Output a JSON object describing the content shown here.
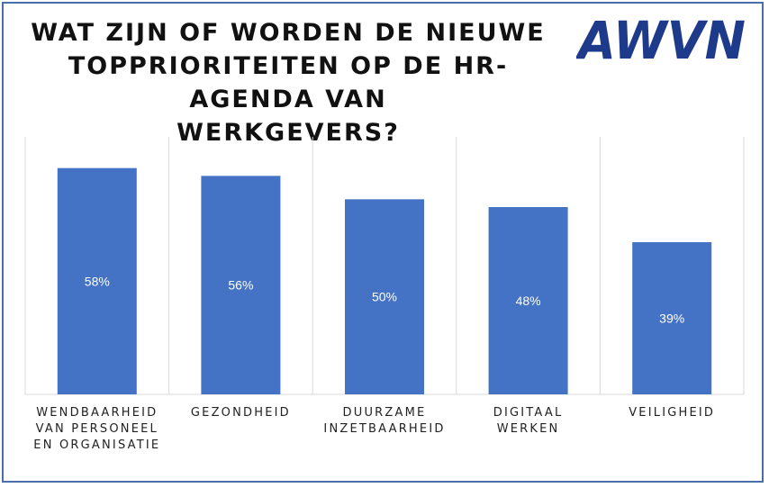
{
  "title": "WAT ZIJN OF WORDEN DE NIEUWE\nTOPPRIORITEITEN OP DE HR-AGENDA VAN\nWERKGEVERS?",
  "logo": {
    "text": "AWVN",
    "color": "#1e3a8a"
  },
  "colors": {
    "bar": "#4472c4",
    "frame": "#4a6ea9",
    "grid": "#d9d9d9",
    "data_label": "#ffffff"
  },
  "chart_data": {
    "type": "bar",
    "categories": [
      "WENDBAARHEID VAN PERSONEEL EN ORGANISATIE",
      "GEZONDHEID",
      "DUURZAME INZETBAARHEID",
      "DIGITAAL WERKEN",
      "VEILIGHEID"
    ],
    "values": [
      58,
      56,
      50,
      48,
      39
    ],
    "data_labels": [
      "58%",
      "56%",
      "50%",
      "48%",
      "39%"
    ],
    "ylim": [
      0,
      66
    ],
    "xlabel": "",
    "ylabel": "",
    "legend": "none",
    "grid": "vertical category separators"
  }
}
